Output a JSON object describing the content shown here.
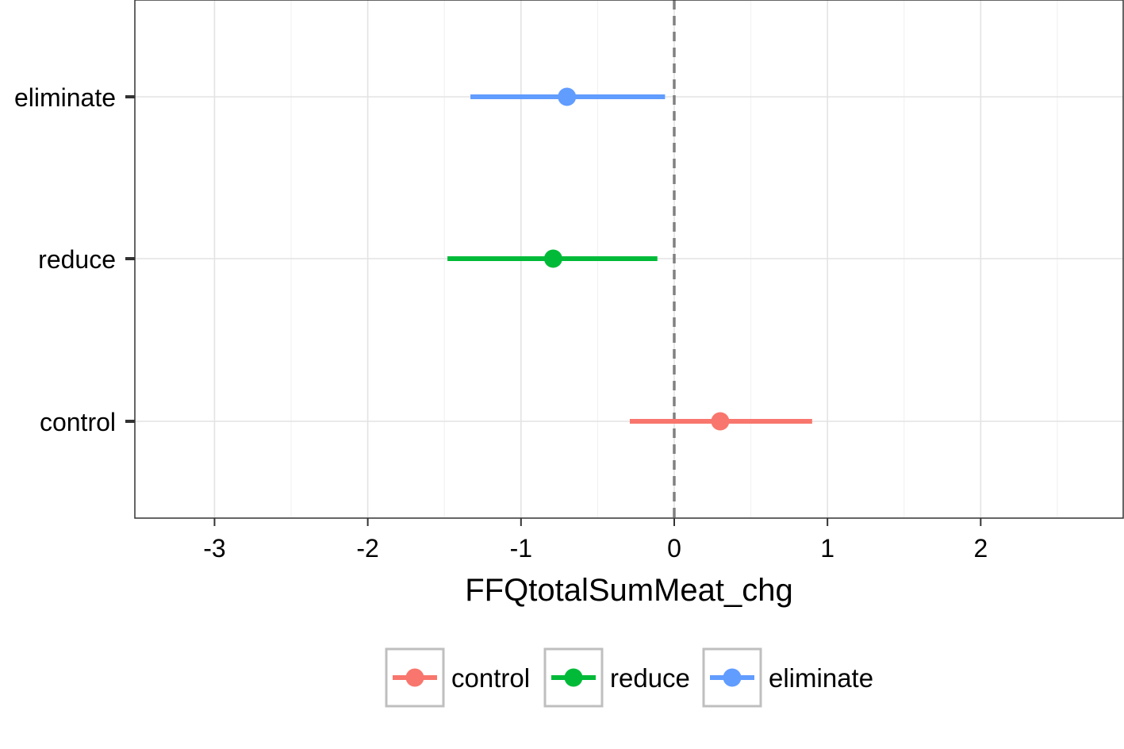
{
  "chart_data": {
    "type": "scatter",
    "subtype": "point-range",
    "title": "",
    "xlabel": "FFQtotalSumMeat_chg",
    "ylabel": "",
    "xlim": [
      -3.52,
      2.93
    ],
    "x_ticks": [
      -3,
      -2,
      -1,
      0,
      1,
      2
    ],
    "x_tick_labels": [
      "-3",
      "-2",
      "-1",
      "0",
      "1",
      "2"
    ],
    "categories": [
      "control",
      "reduce",
      "eliminate"
    ],
    "reference_line": {
      "x": 0,
      "style": "dashed",
      "color": "#808080"
    },
    "grid": true,
    "legend_position": "bottom",
    "series": [
      {
        "name": "control",
        "color": "#F8766D",
        "estimate": 0.3,
        "lower": -0.29,
        "upper": 0.9
      },
      {
        "name": "reduce",
        "color": "#00BA38",
        "estimate": -0.79,
        "lower": -1.48,
        "upper": -0.11
      },
      {
        "name": "eliminate",
        "color": "#619CFF",
        "estimate": -0.7,
        "lower": -1.33,
        "upper": -0.06
      }
    ]
  }
}
